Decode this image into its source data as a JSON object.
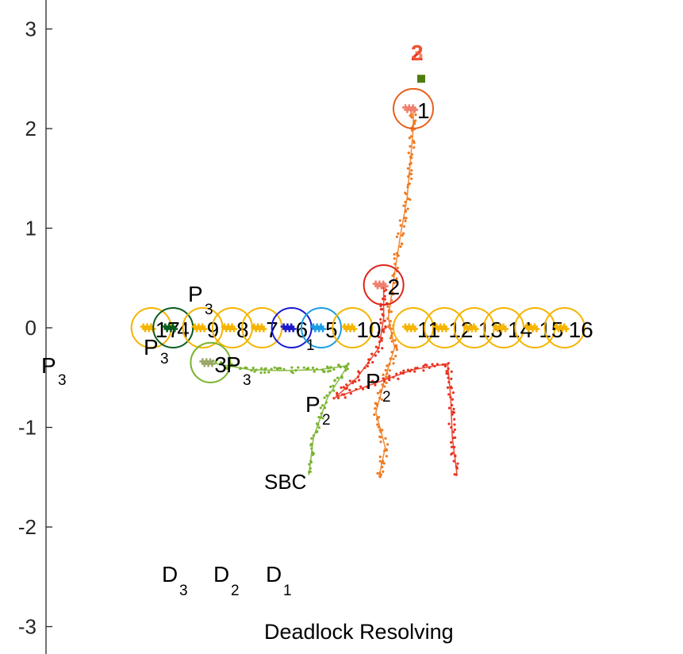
{
  "chart_data": {
    "type": "scatter",
    "title": "Deadlock Resolving",
    "xlabel": "",
    "ylabel": "",
    "xlim": [
      -1.7,
      1.5
    ],
    "ylim": [
      -3.2,
      3.2
    ],
    "y_ticks": [
      3,
      2,
      1,
      0,
      -1,
      -2,
      -3
    ],
    "y_tick_labels": [
      "3",
      "2",
      "1",
      "0",
      "-1",
      "-2",
      "-3"
    ],
    "agents": [
      {
        "id": "17",
        "x": -1.68,
        "y": 0.0,
        "ring": "#f5b400",
        "mark": "#f5b400"
      },
      {
        "id": "4",
        "x": -1.54,
        "y": 0.0,
        "ring": "#0a5c1e",
        "mark": "#0a5c1e"
      },
      {
        "id": "9",
        "x": -1.35,
        "y": 0.0,
        "ring": "#f5b400",
        "mark": "#f5b400"
      },
      {
        "id": "8",
        "x": -1.16,
        "y": 0.0,
        "ring": "#f5b400",
        "mark": "#f5b400"
      },
      {
        "id": "7",
        "x": -0.97,
        "y": 0.0,
        "ring": "#f5b400",
        "mark": "#f5b400"
      },
      {
        "id": "6",
        "x": -0.78,
        "y": 0.0,
        "ring": "#1a1ad1",
        "mark": "#1a1ad1"
      },
      {
        "id": "5",
        "x": -0.59,
        "y": 0.0,
        "ring": "#1a9ee6",
        "mark": "#1a9ee6"
      },
      {
        "id": "10",
        "x": -0.39,
        "y": 0.0,
        "ring": "#f5b400",
        "mark": "#f5b400"
      },
      {
        "id": "11",
        "x": 0.0,
        "y": 0.0,
        "ring": "#f5b400",
        "mark": "#f5b400"
      },
      {
        "id": "12",
        "x": 0.2,
        "y": 0.0,
        "ring": "#f5b400",
        "mark": "#f5b400"
      },
      {
        "id": "13",
        "x": 0.39,
        "y": 0.0,
        "ring": "#f5b400",
        "mark": "#f5b400"
      },
      {
        "id": "14",
        "x": 0.58,
        "y": 0.0,
        "ring": "#f5b400",
        "mark": "#f5b400"
      },
      {
        "id": "15",
        "x": 0.78,
        "y": 0.0,
        "ring": "#f5b400",
        "mark": "#f5b400"
      },
      {
        "id": "16",
        "x": 0.97,
        "y": 0.0,
        "ring": "#f5b400",
        "mark": "#f5b400"
      },
      {
        "id": "1",
        "x": 0.0,
        "y": 2.2,
        "ring": "#e8601c",
        "mark": "#f08070"
      },
      {
        "id": "2",
        "x": -0.19,
        "y": 0.43,
        "ring": "#e0251b",
        "mark": "#f08070"
      },
      {
        "id": "3",
        "x": -1.3,
        "y": -0.35,
        "ring": "#7ab32e",
        "mark": "#9aa86a"
      }
    ],
    "trajectories": [
      {
        "name": "agent-1-path",
        "color": "#f07a1f",
        "points": [
          [
            -0.22,
            -1.5
          ],
          [
            -0.18,
            -1.2
          ],
          [
            -0.24,
            -0.85
          ],
          [
            -0.18,
            -0.5
          ],
          [
            -0.12,
            -0.2
          ],
          [
            -0.16,
            0.1
          ],
          [
            -0.12,
            0.55
          ],
          [
            -0.08,
            0.95
          ],
          [
            -0.04,
            1.3
          ],
          [
            -0.02,
            1.65
          ],
          [
            0.0,
            2.0
          ],
          [
            0.0,
            2.2
          ]
        ]
      },
      {
        "name": "agent-2-path",
        "color": "#e83420",
        "points": [
          [
            0.28,
            -1.47
          ],
          [
            0.25,
            -1.1
          ],
          [
            0.24,
            -0.7
          ],
          [
            0.22,
            -0.36
          ],
          [
            0.0,
            -0.42
          ],
          [
            -0.18,
            -0.52
          ],
          [
            -0.5,
            -0.7
          ],
          [
            -0.36,
            -0.5
          ],
          [
            -0.22,
            -0.2
          ],
          [
            -0.19,
            0.1
          ],
          [
            -0.19,
            0.43
          ]
        ]
      },
      {
        "name": "agent-3-path",
        "color": "#7ab32e",
        "points": [
          [
            -0.67,
            -1.48
          ],
          [
            -0.64,
            -1.1
          ],
          [
            -0.55,
            -0.7
          ],
          [
            -0.42,
            -0.38
          ],
          [
            -0.6,
            -0.42
          ],
          [
            -0.85,
            -0.43
          ],
          [
            -1.05,
            -0.42
          ],
          [
            -1.3,
            -0.35
          ]
        ]
      }
    ],
    "start_markers": [
      {
        "name": "agent-3-goal-marker",
        "x": 0.0,
        "y": 2.5,
        "color": "#4f7d11"
      }
    ],
    "goal_labels": [
      {
        "text": "2",
        "x": 0.0,
        "y": 2.75,
        "color": "#e83420"
      },
      {
        "text": "3",
        "x": 0.0,
        "y": 2.75,
        "color": "#f0603c"
      }
    ],
    "annotations": {
      "p3_left": {
        "base": "P",
        "sub": "3"
      },
      "p3_top": {
        "base": "P",
        "sub": "3"
      },
      "p3_mid": {
        "base": "P",
        "sub": "3"
      },
      "p3_path": {
        "base": "P",
        "sub": "3"
      },
      "p1": {
        "base": "P",
        "sub": "1"
      },
      "p2_low": {
        "base": "P",
        "sub": "2"
      },
      "p2_high": {
        "base": "P",
        "sub": "2"
      },
      "sbc": "SBC",
      "d3": {
        "base": "D",
        "sub": "3"
      },
      "d2": {
        "base": "D",
        "sub": "2"
      },
      "d1": {
        "base": "D",
        "sub": "1"
      }
    }
  }
}
